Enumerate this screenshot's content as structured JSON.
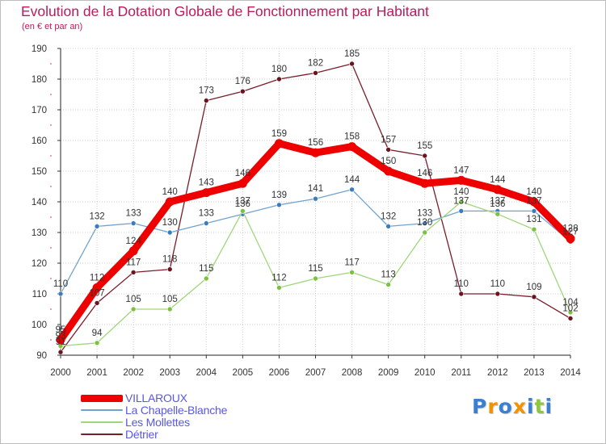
{
  "title": "Evolution de la Dotation Globale de Fonctionnement par Habitant",
  "subtitle": "(en € et par an)",
  "logo": {
    "text": "Proxiti",
    "letters": [
      "P",
      "r",
      "o",
      "x",
      "i",
      "t",
      "i"
    ],
    "colors": [
      "#3a7fd0",
      "#f39200",
      "#3a7fd0",
      "#f39200",
      "#3a7fd0",
      "#8dc63f",
      "#3a7fd0"
    ]
  },
  "chart_data": {
    "type": "line",
    "title": "Evolution de la Dotation Globale de Fonctionnement par Habitant",
    "subtitle": "(en € et par an)",
    "xlabel": "",
    "ylabel": "",
    "ylim": [
      90,
      190
    ],
    "yticks": [
      90,
      100,
      110,
      120,
      130,
      140,
      150,
      160,
      170,
      180,
      190
    ],
    "x": [
      2000,
      2001,
      2002,
      2003,
      2004,
      2005,
      2006,
      2007,
      2008,
      2009,
      2010,
      2011,
      2012,
      2013,
      2014
    ],
    "grid": true,
    "legend_position": "bottom-left",
    "series": [
      {
        "name": "Détrier",
        "color": "#7b1c2a",
        "marker": "#6a1420",
        "values": [
          91,
          107,
          117,
          118,
          173,
          176,
          180,
          182,
          185,
          157,
          155,
          110,
          110,
          109,
          102
        ]
      },
      {
        "name": "La Chapelle-Blanche",
        "color": "#6fa3cf",
        "marker": "#3b7cc0",
        "values": [
          110,
          132,
          133,
          130,
          133,
          136,
          139,
          141,
          144,
          132,
          133,
          137,
          137,
          137,
          127
        ]
      },
      {
        "name": "Les Mollettes",
        "color": "#9fd67a",
        "marker": "#7cc242",
        "values": [
          93,
          94,
          105,
          105,
          115,
          137,
          112,
          115,
          117,
          113,
          130,
          140,
          136,
          131,
          104
        ]
      },
      {
        "name": "VILLAROUX",
        "color": "#ee0000",
        "marker": "#ee0000",
        "values": [
          95,
          112,
          124,
          140,
          143,
          146,
          159,
          156,
          158,
          150,
          146,
          147,
          144,
          140,
          128
        ]
      }
    ],
    "legend_order": [
      "VILLAROUX",
      "La Chapelle-Blanche",
      "Les Mollettes",
      "Détrier"
    ]
  }
}
